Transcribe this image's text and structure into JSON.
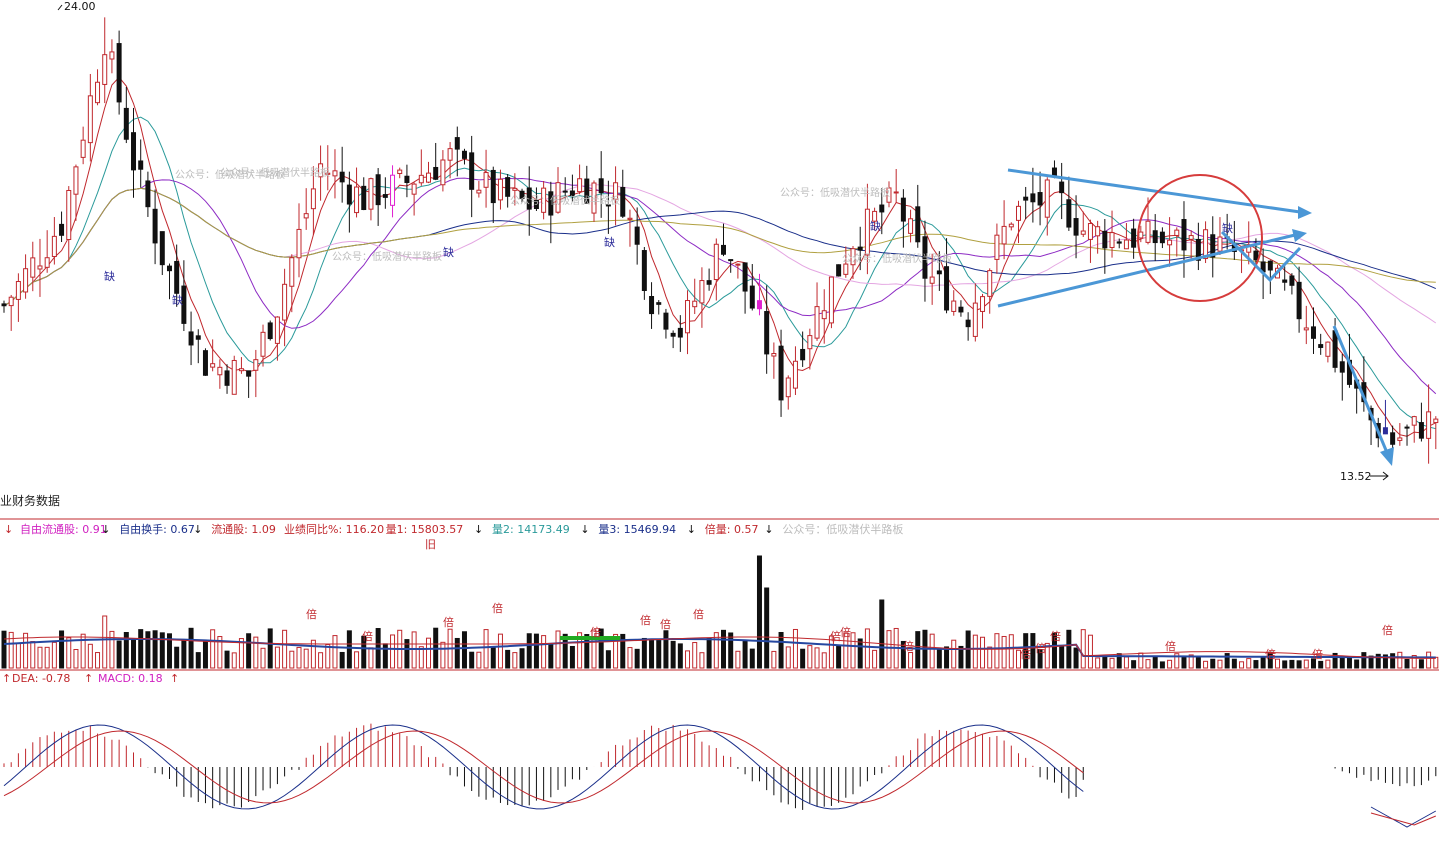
{
  "colors": {
    "up": "#c0282d",
    "down": "#111111",
    "highlight": "#e020d0",
    "gap": "#2d2d9a",
    "annotation": "#4b97d6",
    "circle": "#d63c3c",
    "ma_pink": "#e4a6e2",
    "ma_purple": "#8d2bc4",
    "ma_blue": "#1a2f8a",
    "ma_olive": "#b0a040",
    "ma_cyan": "#2a9a9a",
    "ma_red": "#c0282d",
    "separator": "#c0282d",
    "vol_avg_blue": "#2547a0",
    "vol_avg_green": "#22aa22",
    "dif": "#1a2f8a",
    "dea": "#c0282d"
  },
  "price_panel": {
    "high_label": "24.00",
    "low_label": "13.52",
    "gap_char": "缺",
    "watermarks": [
      "公众号：低吸潜伏半路板",
      "公众号：低吸潜伏半路板",
      "公众号：低吸潜伏半路板",
      "公众号：低吸潜伏半路板",
      "公众号：低吸潜伏半路板",
      "公众号：低吸潜伏半路板"
    ],
    "icons": [
      "arrow-right-icon"
    ]
  },
  "finance_tab": {
    "label": "业财务数据"
  },
  "volume_panel": {
    "legend": [
      {
        "label": "自由流通股: 0.91",
        "arrow": "↓",
        "color": "#d020c0"
      },
      {
        "label": "自由换手: 0.67",
        "arrow": "↓",
        "color": "#1a2f8a"
      },
      {
        "label": "流通股: 1.09",
        "arrow": "",
        "color": "#c0282d"
      },
      {
        "label": "业绩同比%: 116.20",
        "arrow": "",
        "color": "#c0282d"
      },
      {
        "label": "量1: 15803.57",
        "arrow": "↓",
        "color": "#c0282d"
      },
      {
        "label": "量2: 14173.49",
        "arrow": "↓",
        "color": "#2a9a9a"
      },
      {
        "label": "量3: 15469.94",
        "arrow": "↓",
        "color": "#1a2f8a"
      },
      {
        "label": "倍量: 0.57",
        "arrow": "↓",
        "color": "#c0282d"
      },
      {
        "label": "公众号：低吸潜伏半路板",
        "arrow": "",
        "color": "#bdbdbd"
      }
    ],
    "bei_char": "倍",
    "jiu_char": "旧"
  },
  "macd_panel": {
    "legend": [
      {
        "label": "DEA: -0.78",
        "arrow": "↑",
        "color": "#c0282d"
      },
      {
        "label": "MACD: 0.18",
        "arrow": "↑",
        "color": "#d020c0"
      }
    ]
  },
  "chart_data": {
    "type": "candlestick",
    "price_high": 24.0,
    "price_low": 13.52,
    "bars": 200,
    "y_range": [
      13.0,
      24.3
    ],
    "indicators": [
      "MA",
      "VOL",
      "MACD"
    ],
    "annotations": [
      "triangle-converging-lines",
      "circle",
      "breakdown-arrows"
    ]
  }
}
